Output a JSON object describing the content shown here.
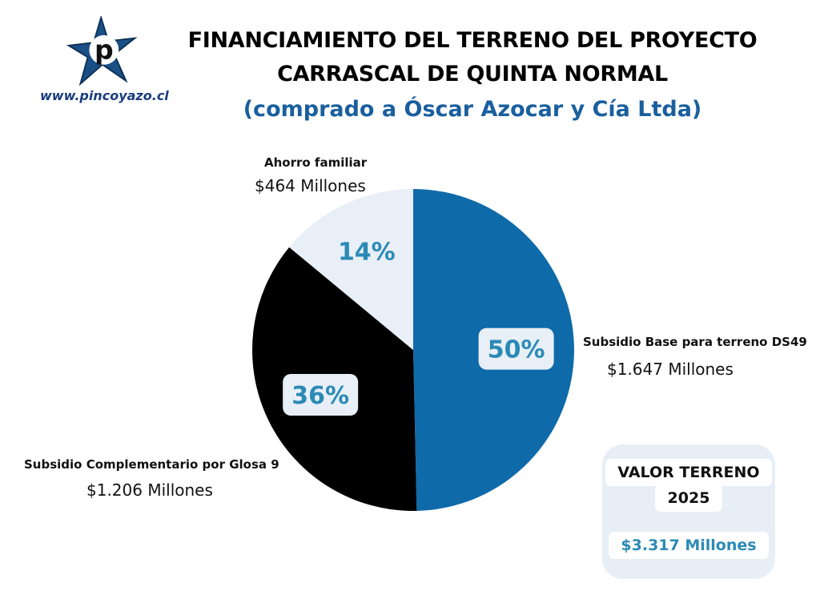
{
  "brand": {
    "url": "www.pincoyazo.cl",
    "logo_letter": "p"
  },
  "title": {
    "line1": "FINANCIAMIENTO DEL TERRENO DEL PROYECTO",
    "line2": "CARRASCAL DE QUINTA NORMAL",
    "subtitle": "(comprado a Óscar Azocar y Cía Ltda)"
  },
  "chart_data": {
    "type": "pie",
    "slices": [
      {
        "name": "Subsidio Base para terreno DS49",
        "amount": "$1.647 Millones",
        "value": 1647,
        "percent": 50,
        "percent_label": "50%",
        "color": "#0f6aa9"
      },
      {
        "name": "Subsidio Complementario por Glosa 9",
        "amount": "$1.206 Millones",
        "value": 1206,
        "percent": 36,
        "percent_label": "36%",
        "color": "#000000"
      },
      {
        "name": "Ahorro familiar",
        "amount": "$464 Millones",
        "value": 464,
        "percent": 14,
        "percent_label": "14%",
        "color": "#e8eff6"
      }
    ],
    "percent_label_color": "#2b8ab5"
  },
  "summary": {
    "label_line1": "VALOR TERRENO",
    "label_line2": "2025",
    "value": "$3.317 Millones"
  },
  "colors": {
    "title": "#000000",
    "subtitle": "#1a5f9e",
    "url": "#1a3d7c",
    "card": "#e7eef6"
  }
}
